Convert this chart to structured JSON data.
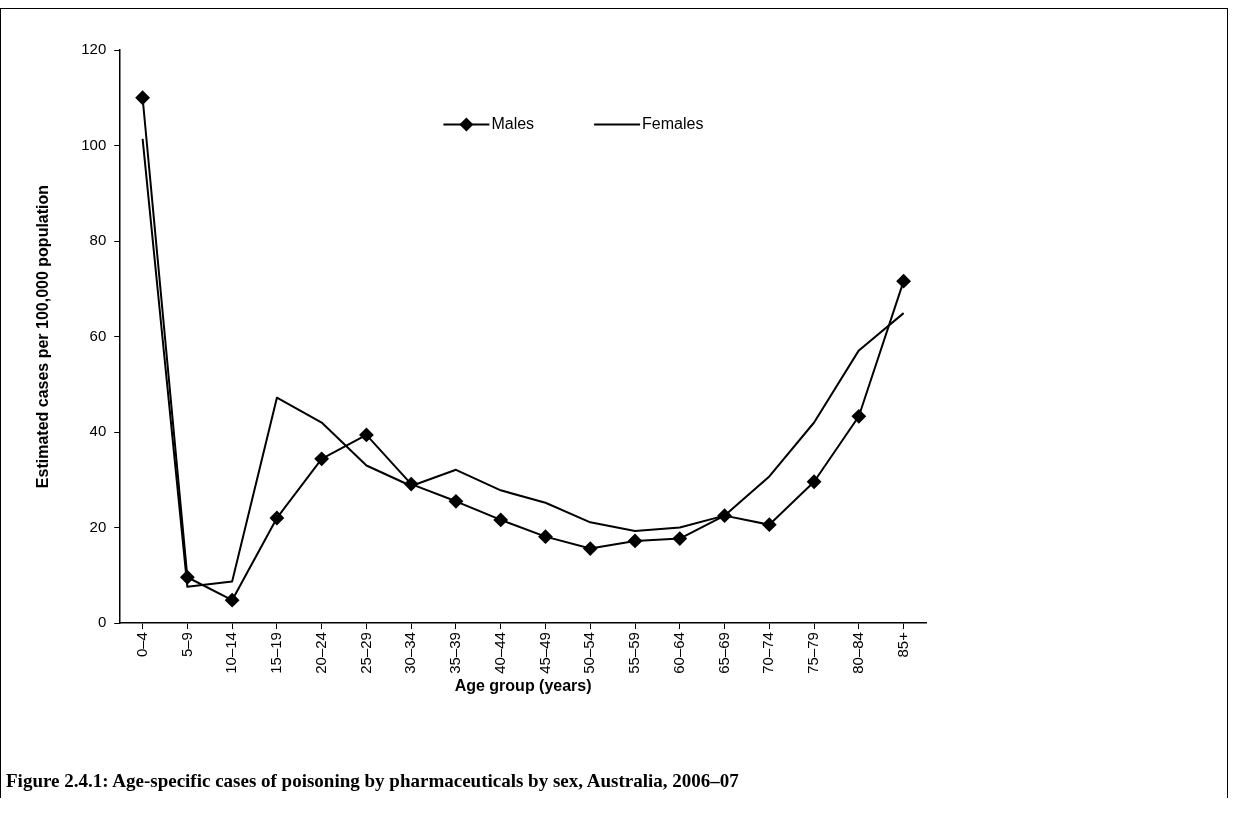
{
  "chart_data": {
    "type": "line",
    "categories": [
      "0–4",
      "5–9",
      "10–14",
      "15–19",
      "20–24",
      "25–29",
      "30–34",
      "35–39",
      "40–44",
      "45–49",
      "50–54",
      "55–59",
      "60–64",
      "65–69",
      "70–74",
      "75–79",
      "80–84",
      "85+"
    ],
    "series": [
      {
        "name": "Males",
        "color": "#000000",
        "marker": "diamond",
        "values": [
          110,
          9.6,
          4.8,
          22,
          34.4,
          39.4,
          29.1,
          25.5,
          21.6,
          18.1,
          15.6,
          17.2,
          17.7,
          22.5,
          20.6,
          29.6,
          43.3,
          71.6
        ]
      },
      {
        "name": "Females",
        "color": "#000000",
        "marker": "none",
        "values": [
          101.4,
          7.6,
          8.7,
          47.2,
          42,
          33,
          28.7,
          32.1,
          27.8,
          25.2,
          21.1,
          19.3,
          20,
          22.5,
          30.7,
          42,
          57.1,
          64.9
        ]
      }
    ],
    "xlabel": "Age group (years)",
    "ylabel": "Estimated cases per 100,000 population",
    "ylim": [
      0,
      120
    ],
    "yticks": [
      0,
      20,
      40,
      60,
      80,
      100,
      120
    ],
    "grid": false,
    "legend": "top",
    "annotations": [
      "Figure 2.4.1: Age-specific cases of poisoning by pharmaceuticals by sex, Australia, 2006–07"
    ]
  }
}
